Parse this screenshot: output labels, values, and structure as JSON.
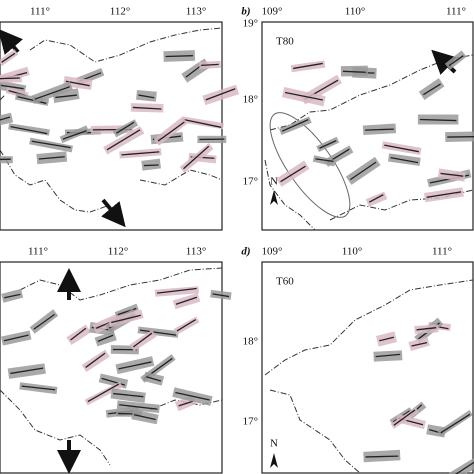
{
  "panels": [
    {
      "lon_labels": [
        "111°",
        "112°",
        "113°"
      ]
    },
    {
      "label": "b)",
      "lon_labels": [
        "109°",
        "110°",
        "111°"
      ],
      "lat_labels": [
        "19°",
        "18°",
        "17°"
      ],
      "title": "T80",
      "north": "N"
    },
    {
      "lon_labels": [
        "111°",
        "112°",
        "113°"
      ]
    },
    {
      "label": "d)",
      "lon_labels": [
        "109°",
        "110°",
        "111°"
      ],
      "lat_labels": [
        "18°",
        "17°"
      ],
      "title": "T60",
      "north": "N"
    }
  ]
}
